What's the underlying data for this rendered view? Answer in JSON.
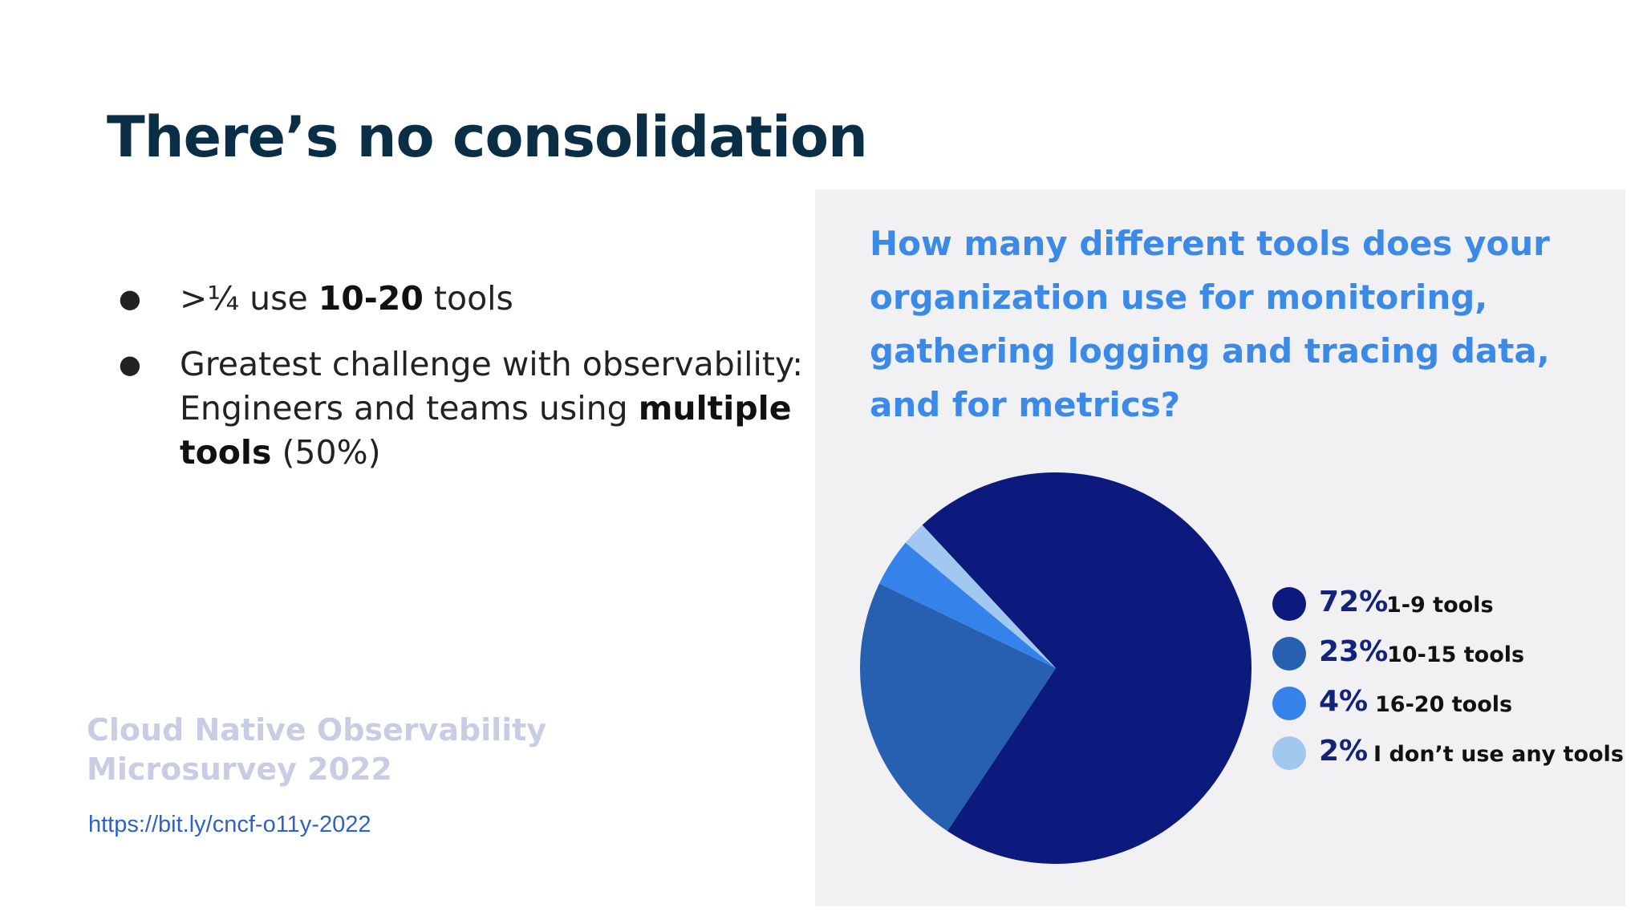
{
  "slide": {
    "title": "There’s no consolidation",
    "bullets": [
      {
        "p1": ">¼ use ",
        "b1": "10-20",
        "p2": " tools"
      },
      {
        "p1": "Greatest challenge with observability: Engineers and teams using ",
        "b1": "multiple tools",
        "p2": " (50%)"
      }
    ],
    "source_line1": "Cloud Native Observability",
    "source_line2": "Microsurvey 2022",
    "link": "https://bit.ly/cncf-o11y-2022"
  },
  "chart_data": {
    "type": "pie",
    "title": "How many different tools does your organization use for monitoring, gathering logging and tracing data, and for metrics?",
    "slices": [
      {
        "label": "1-9 tools",
        "percent_label": "72%",
        "value": 72,
        "color": "#0c1a7e"
      },
      {
        "label": "10-15 tools",
        "percent_label": "23%",
        "value": 23,
        "color": "#275fb1"
      },
      {
        "label": "16-20 tools",
        "percent_label": "4%",
        "value": 4,
        "color": "#3582ea"
      },
      {
        "label": "I don’t use any tools",
        "percent_label": "2%",
        "value": 2,
        "color": "#a3c8f0"
      }
    ],
    "legend_position": "right"
  }
}
